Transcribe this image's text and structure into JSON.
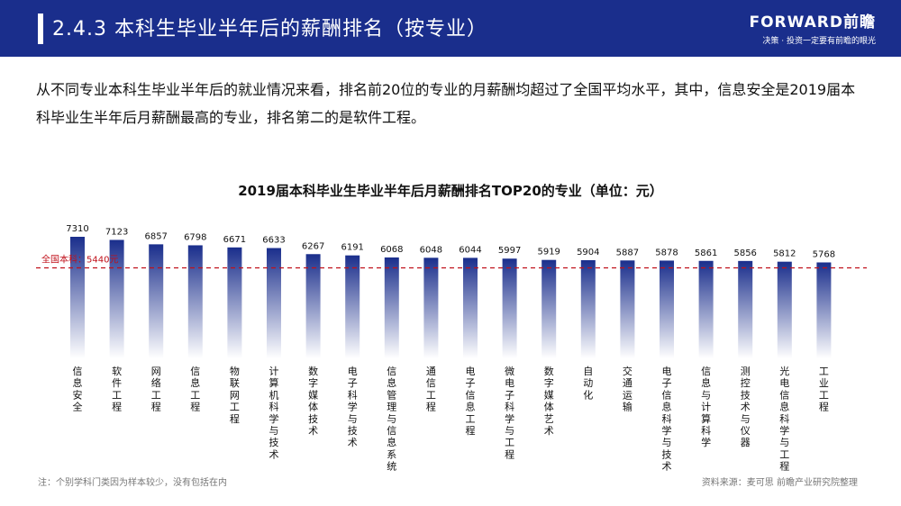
{
  "header": {
    "title": "2.4.3  本科生毕业半年后的薪酬排名（按专业）",
    "brand": "FORWARD前瞻",
    "slogan": "决策 · 投资一定要有前瞻的眼光"
  },
  "intro": "从不同专业本科生毕业半年后的就业情况来看，排名前20位的专业的月薪酬均超过了全国平均水平，其中，信息安全是2019届本科毕业生半年后月薪酬最高的专业，排名第二的是软件工程。",
  "colors": {
    "header_bg": "#1a2e8c",
    "bar_top": "#1a2e8c",
    "bar_bottom": "#ffffff",
    "avg_line": "#c0101a"
  },
  "chart_data": {
    "type": "bar",
    "title": "2019届本科毕业生毕业半年后月薪酬排名TOP20的专业（单位：元）",
    "categories": [
      "信息安全",
      "软件工程",
      "网络工程",
      "信息工程",
      "物联网工程",
      "计算机科学与技术",
      "数字媒体技术",
      "电子科学与技术",
      "信息管理与信息系统",
      "通信工程",
      "电子信息工程",
      "微电子科学与工程",
      "数字媒体艺术",
      "自动化",
      "交通运输",
      "电子信息科学与技术",
      "信息与计算科学",
      "测控技术与仪器",
      "光电信息科学与工程",
      "工业工程"
    ],
    "values": [
      7310,
      7123,
      6857,
      6798,
      6671,
      6633,
      6267,
      6191,
      6068,
      6048,
      6044,
      5997,
      5919,
      5904,
      5887,
      5878,
      5861,
      5856,
      5812,
      5768
    ],
    "reference_line": {
      "label": "全国本科：5440元",
      "value": 5440
    },
    "ylim": [
      0,
      7310
    ],
    "grid": false,
    "legend": "none"
  },
  "footnote": "注：个别学科门类因为样本较少，没有包括在内",
  "source": "资料来源：麦可思  前瞻产业研究院整理"
}
